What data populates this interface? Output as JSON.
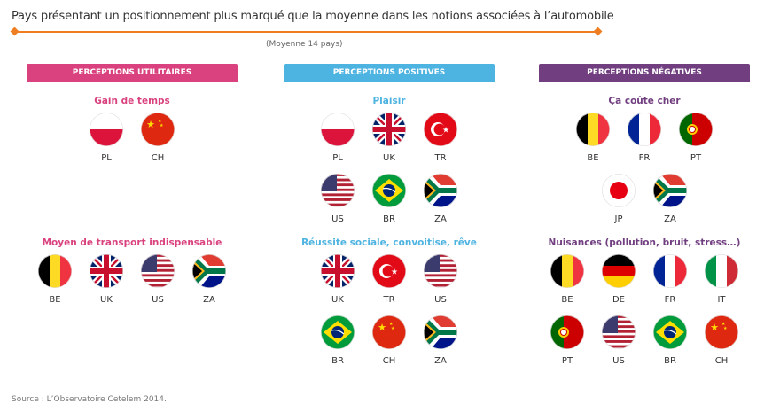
{
  "title": "Pays présentant un positionnement plus marqué que la moyenne dans les notions associées à l’automobile",
  "average_label": "(Moyenne 14 pays)",
  "source": "Source : L’Observatoire Cetelem 2014.",
  "colors": {
    "accent_line": "#ef7d22",
    "utilitaires": "#d9427e",
    "positives": "#4db3e0",
    "negatives": "#713f80"
  },
  "columns": [
    {
      "header": "PERCEPTIONS UTILITAIRES",
      "color": "#d9427e",
      "categories": [
        {
          "title": "Gain de temps",
          "rows": [
            [
              "PL",
              "CH"
            ]
          ]
        },
        {
          "title": "Moyen de transport indispensable",
          "rows": [
            [
              "BE",
              "UK",
              "US",
              "ZA"
            ]
          ]
        }
      ]
    },
    {
      "header": "PERCEPTIONS POSITIVES",
      "color": "#4db3e0",
      "categories": [
        {
          "title": "Plaisir",
          "rows": [
            [
              "PL",
              "UK",
              "TR"
            ],
            [
              "US",
              "BR",
              "ZA"
            ]
          ]
        },
        {
          "title": "Réussite sociale, convoitise, rêve",
          "rows": [
            [
              "UK",
              "TR",
              "US"
            ],
            [
              "BR",
              "CH",
              "ZA"
            ]
          ]
        }
      ]
    },
    {
      "header": "PERCEPTIONS NÉGATIVES",
      "color": "#713f80",
      "categories": [
        {
          "title": "Ça coûte cher",
          "rows": [
            [
              "BE",
              "FR",
              "PT"
            ],
            [
              "JP",
              "ZA"
            ]
          ]
        },
        {
          "title": "Nuisances (pollution, bruit, stress…)",
          "rows": [
            [
              "BE",
              "DE",
              "FR",
              "IT"
            ],
            [
              "PT",
              "US",
              "BR",
              "CH"
            ]
          ]
        }
      ]
    }
  ]
}
